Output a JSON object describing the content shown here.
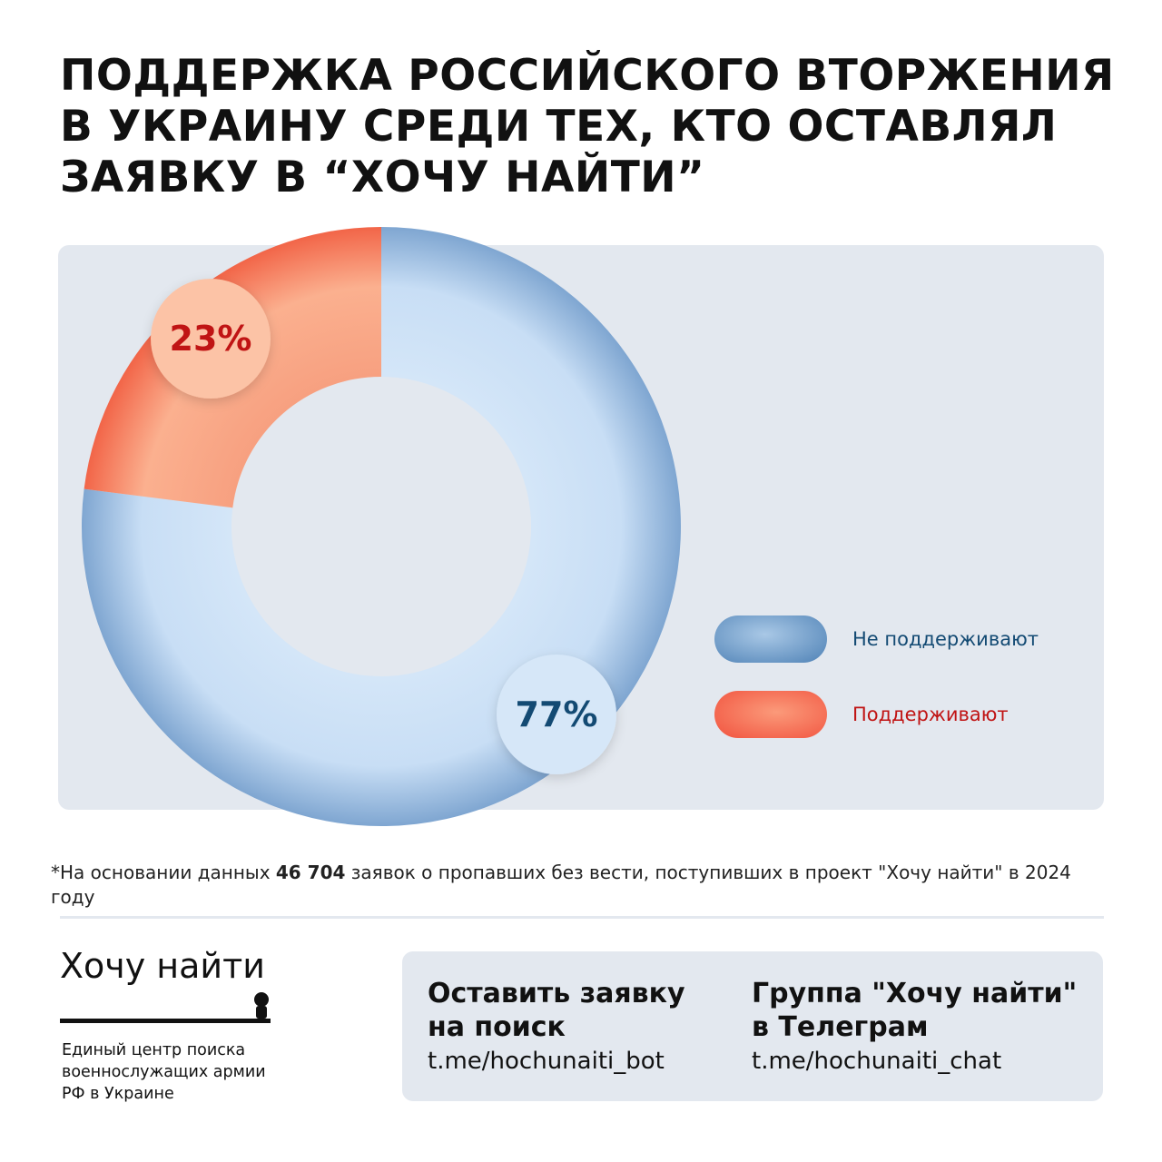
{
  "title": "ПОДДЕРЖКА РОССИЙСКОГО ВТОРЖЕНИЯ В УКРАИНУ СРЕДИ ТЕХ, КТО ОСТАВЛЯЛ ЗАЯВКУ В “ХОЧУ НАЙТИ”",
  "chart_data": {
    "type": "pie",
    "donut": true,
    "categories": [
      "Не поддерживают",
      "Поддерживают"
    ],
    "values": [
      77,
      23
    ],
    "labels": [
      "77%",
      "23%"
    ],
    "colors": [
      "#c6dcf3",
      "#f98a6c"
    ],
    "label_colors": [
      "#134a73",
      "#c01414"
    ],
    "legend": "right"
  },
  "footnote": {
    "star": "*",
    "before": "На основании данных ",
    "bold": "46 704",
    "after": " заявок о пропавших без вести, поступивших в проект \"Хочу найти\" в 2024 году"
  },
  "brand": {
    "name": "Хочу найти",
    "subtitle": "Единый центр поиска военнослужащих армии РФ в Украине",
    "icon": "person-icon"
  },
  "cta": [
    {
      "heading": "Оставить заявку на поиск",
      "link": "t.me/hochunaiti_bot"
    },
    {
      "heading": "Группа \"Хочу найти\" в Телеграм",
      "link": "t.me/hochunaiti_chat"
    }
  ]
}
